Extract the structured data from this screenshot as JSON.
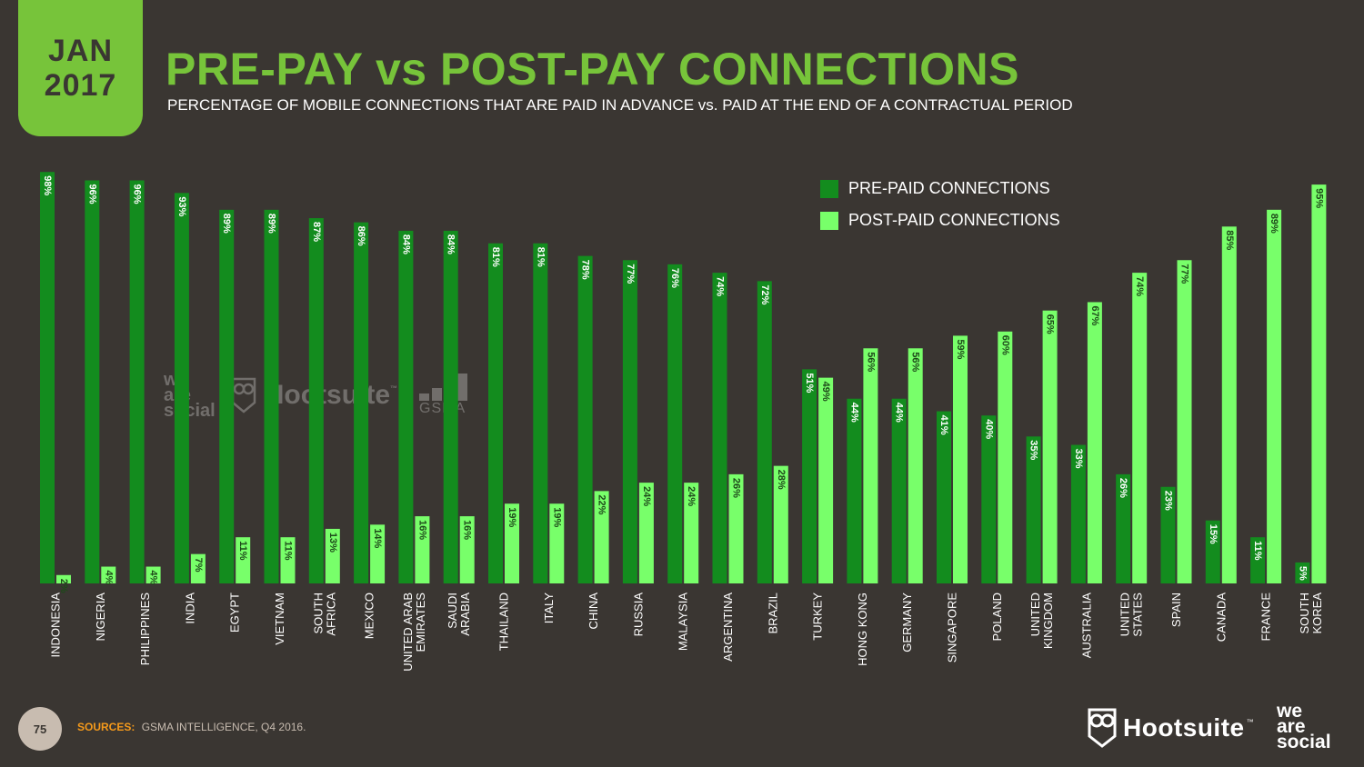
{
  "date": {
    "month": "JAN",
    "year": "2017"
  },
  "title": "PRE-PAY vs POST-PAY CONNECTIONS",
  "subtitle": "PERCENTAGE OF MOBILE CONNECTIONS THAT ARE PAID IN ADVANCE vs. PAID AT THE END OF A CONTRACTUAL PERIOD",
  "colors": {
    "prepaid": "#138c1e",
    "postpaid": "#78ff6a",
    "accent": "#77c43a",
    "background": "#3a3632",
    "sources_label": "#f59a1b"
  },
  "legend": {
    "prepaid": "PRE-PAID CONNECTIONS",
    "postpaid": "POST-PAID CONNECTIONS"
  },
  "chart_data": {
    "type": "bar",
    "title": "PRE-PAY vs POST-PAY CONNECTIONS",
    "subtitle": "PERCENTAGE OF MOBILE CONNECTIONS THAT ARE PAID IN ADVANCE vs. PAID AT THE END OF A CONTRACTUAL PERIOD",
    "xlabel": "",
    "ylabel": "",
    "ylim": [
      0,
      100
    ],
    "grid": false,
    "legend_position": "top-right",
    "categories": [
      [
        "INDONESIA"
      ],
      [
        "NIGERIA"
      ],
      [
        "PHILIPPINES"
      ],
      [
        "INDIA"
      ],
      [
        "EGYPT"
      ],
      [
        "VIETNAM"
      ],
      [
        "SOUTH",
        "AFRICA"
      ],
      [
        "MEXICO"
      ],
      [
        "UNITED ARAB",
        "EMIRATES"
      ],
      [
        "SAUDI",
        "ARABIA"
      ],
      [
        "THAILAND"
      ],
      [
        "ITALY"
      ],
      [
        "CHINA"
      ],
      [
        "RUSSIA"
      ],
      [
        "MALAYSIA"
      ],
      [
        "ARGENTINA"
      ],
      [
        "BRAZIL"
      ],
      [
        "TURKEY"
      ],
      [
        "HONG KONG"
      ],
      [
        "GERMANY"
      ],
      [
        "SINGAPORE"
      ],
      [
        "POLAND"
      ],
      [
        "UNITED",
        "KINGDOM"
      ],
      [
        "AUSTRALIA"
      ],
      [
        "UNITED",
        "STATES"
      ],
      [
        "SPAIN"
      ],
      [
        "CANADA"
      ],
      [
        "FRANCE"
      ],
      [
        "SOUTH",
        "KOREA"
      ]
    ],
    "series": [
      {
        "name": "PRE-PAID CONNECTIONS",
        "color": "#138c1e",
        "values": [
          98,
          96,
          96,
          93,
          89,
          89,
          87,
          86,
          84,
          84,
          81,
          81,
          78,
          77,
          76,
          74,
          72,
          51,
          44,
          44,
          41,
          40,
          35,
          33,
          26,
          23,
          15,
          11,
          5
        ]
      },
      {
        "name": "POST-PAID CONNECTIONS",
        "color": "#78ff6a",
        "values": [
          2,
          4,
          4,
          7,
          11,
          11,
          13,
          14,
          16,
          16,
          19,
          19,
          22,
          24,
          24,
          26,
          28,
          49,
          56,
          56,
          59,
          60,
          65,
          67,
          74,
          77,
          85,
          89,
          95
        ]
      }
    ]
  },
  "watermark": {
    "was": [
      "we",
      "are",
      "social"
    ],
    "hootsuite": "Hootsuite",
    "tm": "™",
    "gsma": "GSMA"
  },
  "footer": {
    "page_number": "75",
    "sources_label": "SOURCES:",
    "sources_text": "GSMA INTELLIGENCE, Q4 2016.",
    "hootsuite": "Hootsuite",
    "tm": "™",
    "was": [
      "we",
      "are",
      "social"
    ]
  }
}
